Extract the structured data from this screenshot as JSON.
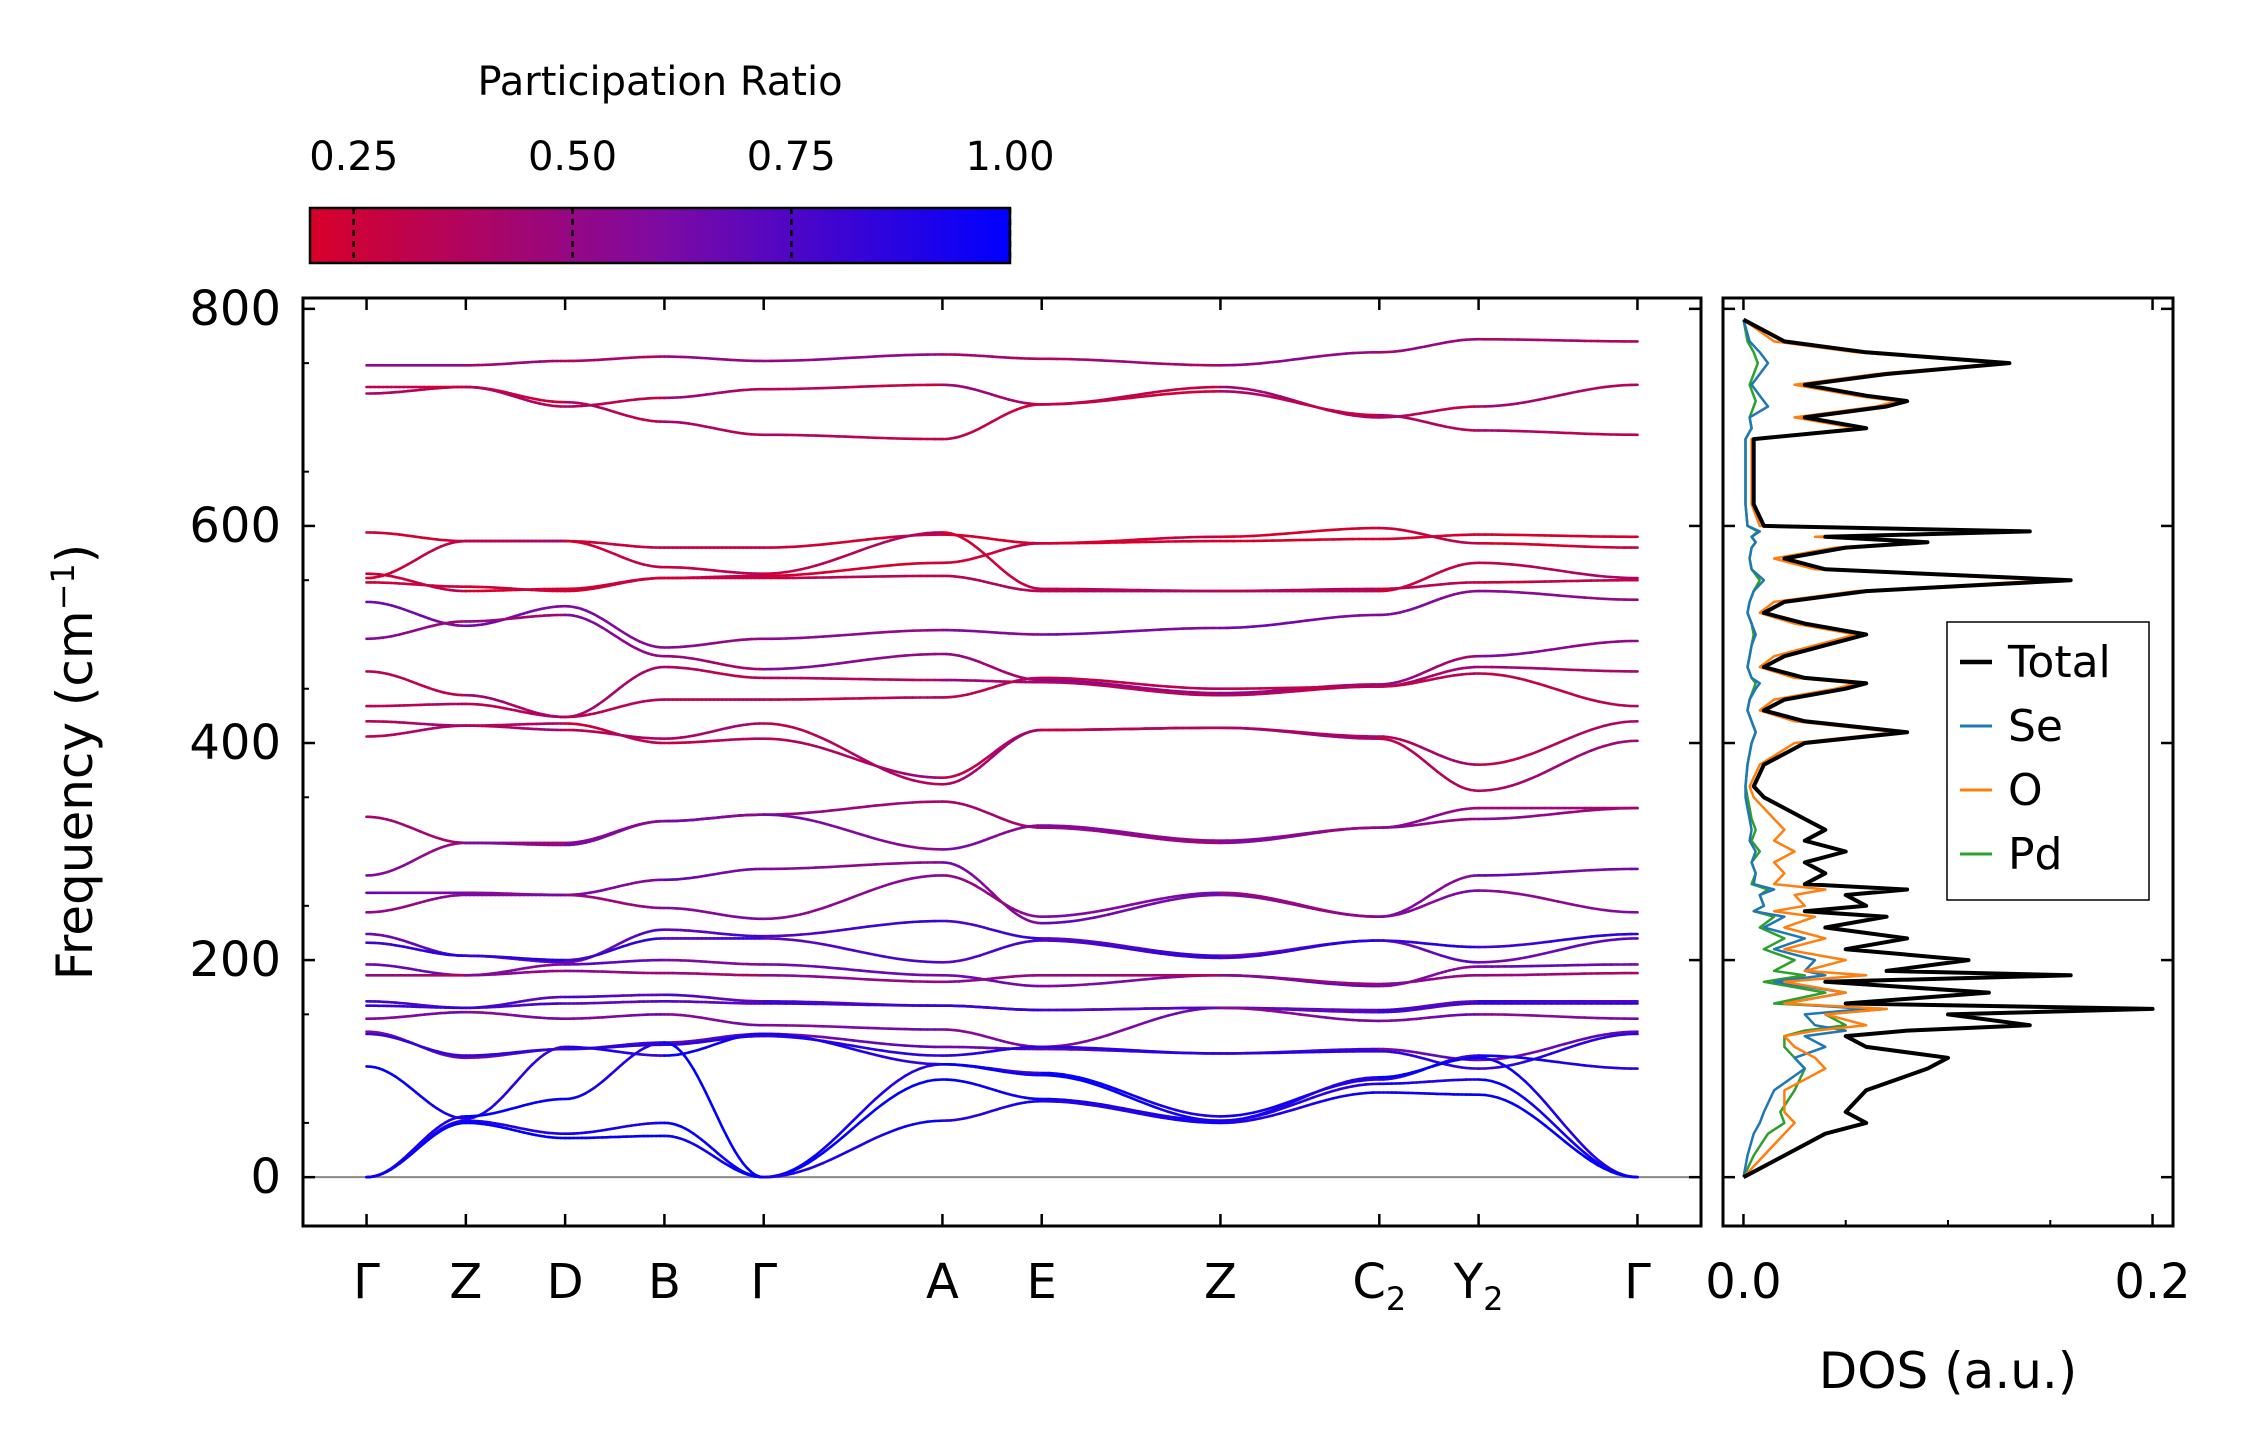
{
  "chart_data": [
    {
      "type": "line",
      "subtype": "phonon-band-structure",
      "ylabel_main": "Frequency (cm",
      "ylabel_sup": "−1",
      "ylabel_close": ")",
      "ylim": [
        -45,
        810
      ],
      "yticks": [
        0,
        200,
        400,
        600,
        800
      ],
      "kpoints": [
        {
          "label": "Γ",
          "sub": "",
          "x": 0
        },
        {
          "label": "Z",
          "sub": "",
          "x": 0.5
        },
        {
          "label": "D",
          "sub": "",
          "x": 1.0
        },
        {
          "label": "B",
          "sub": "",
          "x": 1.5
        },
        {
          "label": "Γ",
          "sub": "",
          "x": 2.0
        },
        {
          "label": "A",
          "sub": "",
          "x": 2.9
        },
        {
          "label": "E",
          "sub": "",
          "x": 3.4
        },
        {
          "label": "Z",
          "sub": "",
          "x": 4.3
        },
        {
          "label": "C",
          "sub": "2",
          "x": 5.1
        },
        {
          "label": "Y",
          "sub": "2",
          "x": 5.6
        },
        {
          "label": "Γ",
          "sub": "",
          "x": 6.4
        }
      ],
      "xlim": [
        -0.32,
        6.72
      ],
      "segment_breaks": [
        2.0,
        2.9,
        5.6
      ],
      "zero_line": 0,
      "colorbar": {
        "title": "Participation Ratio",
        "range": [
          0.2,
          1.0
        ],
        "ticks": [
          "0.25",
          "0.50",
          "0.75",
          "1.00"
        ],
        "tick_values": [
          0.25,
          0.5,
          0.75,
          1.0
        ],
        "color_low": "#d8002a",
        "color_mid": "#7e0aa2",
        "color_high": "#0000ff"
      },
      "bands": [
        {
          "y": [
            748,
            748,
            752,
            756,
            752,
            758,
            754,
            748,
            760,
            772,
            770
          ],
          "pr": 0.42
        },
        {
          "y": [
            722,
            728,
            710,
            718,
            726,
            730,
            712,
            728,
            700,
            710,
            730
          ],
          "pr": 0.36
        },
        {
          "y": [
            728,
            728,
            714,
            696,
            684,
            680,
            712,
            724,
            702,
            688,
            684
          ],
          "pr": 0.34
        },
        {
          "y": [
            594,
            586,
            586,
            580,
            580,
            592,
            584,
            586,
            588,
            592,
            590
          ],
          "pr": 0.24
        },
        {
          "y": [
            556,
            540,
            542,
            552,
            554,
            566,
            584,
            590,
            598,
            584,
            580
          ],
          "pr": 0.25
        },
        {
          "y": [
            552,
            586,
            586,
            562,
            556,
            594,
            542,
            540,
            540,
            566,
            552
          ],
          "pr": 0.3
        },
        {
          "y": [
            548,
            544,
            540,
            552,
            552,
            554,
            540,
            540,
            542,
            548,
            550
          ],
          "pr": 0.28
        },
        {
          "y": [
            530,
            508,
            526,
            488,
            496,
            504,
            500,
            506,
            518,
            540,
            532
          ],
          "pr": 0.55
        },
        {
          "y": [
            496,
            512,
            518,
            480,
            468,
            482,
            458,
            446,
            454,
            480,
            494
          ],
          "pr": 0.5
        },
        {
          "y": [
            466,
            444,
            424,
            470,
            460,
            458,
            456,
            444,
            452,
            470,
            466
          ],
          "pr": 0.42
        },
        {
          "y": [
            434,
            436,
            424,
            440,
            440,
            442,
            460,
            450,
            452,
            464,
            434
          ],
          "pr": 0.4
        },
        {
          "y": [
            420,
            416,
            418,
            400,
            404,
            368,
            412,
            414,
            406,
            380,
            420
          ],
          "pr": 0.34
        },
        {
          "y": [
            406,
            416,
            412,
            404,
            418,
            362,
            412,
            414,
            404,
            356,
            402
          ],
          "pr": 0.36
        },
        {
          "y": [
            332,
            308,
            308,
            328,
            334,
            346,
            322,
            308,
            322,
            340,
            340
          ],
          "pr": 0.46
        },
        {
          "y": [
            278,
            308,
            306,
            328,
            334,
            302,
            324,
            310,
            322,
            330,
            340
          ],
          "pr": 0.52
        },
        {
          "y": [
            262,
            262,
            260,
            274,
            284,
            290,
            234,
            260,
            240,
            278,
            284
          ],
          "pr": 0.62
        },
        {
          "y": [
            244,
            260,
            260,
            248,
            238,
            278,
            240,
            262,
            240,
            264,
            244
          ],
          "pr": 0.58
        },
        {
          "y": [
            224,
            204,
            198,
            228,
            222,
            236,
            220,
            204,
            218,
            198,
            220
          ],
          "pr": 0.74
        },
        {
          "y": [
            216,
            204,
            200,
            220,
            220,
            198,
            218,
            202,
            218,
            212,
            224
          ],
          "pr": 0.78
        },
        {
          "y": [
            196,
            186,
            196,
            200,
            196,
            186,
            176,
            186,
            176,
            194,
            196
          ],
          "pr": 0.6
        },
        {
          "y": [
            186,
            186,
            190,
            188,
            186,
            180,
            186,
            186,
            178,
            186,
            188
          ],
          "pr": 0.48
        },
        {
          "y": [
            162,
            156,
            166,
            168,
            162,
            158,
            154,
            156,
            154,
            162,
            162
          ],
          "pr": 0.8
        },
        {
          "y": [
            158,
            156,
            160,
            162,
            160,
            158,
            154,
            156,
            152,
            160,
            160
          ],
          "pr": 0.8
        },
        {
          "y": [
            146,
            152,
            146,
            150,
            140,
            136,
            120,
            156,
            144,
            150,
            146
          ],
          "pr": 0.62
        },
        {
          "y": [
            134,
            110,
            118,
            124,
            132,
            120,
            118,
            114,
            118,
            108,
            134
          ],
          "pr": 0.7
        },
        {
          "y": [
            132,
            112,
            118,
            122,
            130,
            112,
            120,
            114,
            116,
            100,
            132
          ],
          "pr": 0.78
        },
        {
          "y": [
            102,
            54,
            120,
            112,
            132,
            104,
            96,
            56,
            90,
            112,
            100
          ],
          "pr": 0.88
        },
        {
          "y": [
            0,
            56,
            72,
            124,
            0,
            104,
            94,
            52,
            92,
            110,
            0
          ],
          "pr": 0.98
        },
        {
          "y": [
            0,
            52,
            40,
            50,
            0,
            90,
            72,
            52,
            86,
            90,
            0
          ],
          "pr": 0.98
        },
        {
          "y": [
            0,
            50,
            36,
            38,
            0,
            52,
            70,
            50,
            78,
            76,
            0
          ],
          "pr": 0.98
        }
      ]
    },
    {
      "type": "line",
      "subtype": "density-of-states",
      "xlabel": "DOS (a.u.)",
      "xlim": [
        -0.01,
        0.21
      ],
      "xticks": [
        "0.0",
        "0.2"
      ],
      "xtick_values": [
        0,
        0.2
      ],
      "legend_position": "center-right",
      "freq_grid": [
        0,
        20,
        40,
        50,
        60,
        80,
        100,
        110,
        120,
        130,
        135,
        140,
        150,
        155,
        160,
        170,
        180,
        186,
        190,
        200,
        210,
        220,
        230,
        240,
        245,
        250,
        260,
        265,
        270,
        280,
        290,
        300,
        310,
        320,
        330,
        340,
        350,
        360,
        380,
        400,
        410,
        420,
        430,
        440,
        450,
        455,
        460,
        470,
        480,
        490,
        500,
        510,
        520,
        530,
        540,
        550,
        560,
        570,
        580,
        585,
        590,
        595,
        600,
        620,
        640,
        660,
        680,
        690,
        700,
        710,
        715,
        720,
        730,
        740,
        750,
        760,
        770,
        790
      ],
      "series": [
        {
          "name": "Total",
          "color": "#000000",
          "width": 4,
          "values": [
            0,
            0.02,
            0.04,
            0.06,
            0.05,
            0.06,
            0.09,
            0.1,
            0.06,
            0.05,
            0.08,
            0.14,
            0.1,
            0.2,
            0.05,
            0.12,
            0.04,
            0.16,
            0.07,
            0.11,
            0.05,
            0.08,
            0.04,
            0.07,
            0.03,
            0.06,
            0.05,
            0.08,
            0.03,
            0.04,
            0.03,
            0.05,
            0.03,
            0.04,
            0.03,
            0.02,
            0.01,
            0.005,
            0.01,
            0.03,
            0.08,
            0.03,
            0.01,
            0.02,
            0.05,
            0.06,
            0.03,
            0.01,
            0.02,
            0.04,
            0.06,
            0.03,
            0.01,
            0.02,
            0.06,
            0.16,
            0.04,
            0.02,
            0.05,
            0.09,
            0.04,
            0.14,
            0.01,
            0.005,
            0.005,
            0.005,
            0.005,
            0.06,
            0.03,
            0.07,
            0.08,
            0.06,
            0.03,
            0.07,
            0.13,
            0.06,
            0.02,
            0
          ]
        },
        {
          "name": "Se",
          "color": "#1f77b4",
          "width": 2.5,
          "values": [
            0,
            0.002,
            0.005,
            0.008,
            0.01,
            0.015,
            0.03,
            0.025,
            0.04,
            0.03,
            0.05,
            0.035,
            0.03,
            0.06,
            0.02,
            0.05,
            0.015,
            0.04,
            0.03,
            0.035,
            0.015,
            0.03,
            0.01,
            0.02,
            0.005,
            0.01,
            0.008,
            0.015,
            0.005,
            0.006,
            0.004,
            0.006,
            0.003,
            0.004,
            0.003,
            0.002,
            0.001,
            0.001,
            0.002,
            0.004,
            0.006,
            0.004,
            0.002,
            0.003,
            0.006,
            0.008,
            0.004,
            0.002,
            0.003,
            0.004,
            0.006,
            0.004,
            0.002,
            0.003,
            0.005,
            0.01,
            0.004,
            0.003,
            0.004,
            0.006,
            0.004,
            0.008,
            0.002,
            0.001,
            0.001,
            0.001,
            0.001,
            0.004,
            0.003,
            0.012,
            0.01,
            0.008,
            0.004,
            0.008,
            0.012,
            0.008,
            0.003,
            0
          ]
        },
        {
          "name": "O",
          "color": "#ff7f0e",
          "width": 2.5,
          "values": [
            0,
            0.01,
            0.02,
            0.025,
            0.02,
            0.02,
            0.04,
            0.035,
            0.025,
            0.02,
            0.035,
            0.06,
            0.04,
            0.07,
            0.02,
            0.05,
            0.02,
            0.06,
            0.03,
            0.05,
            0.02,
            0.04,
            0.02,
            0.035,
            0.015,
            0.03,
            0.025,
            0.04,
            0.015,
            0.02,
            0.015,
            0.025,
            0.015,
            0.02,
            0.015,
            0.01,
            0.005,
            0.003,
            0.008,
            0.025,
            0.075,
            0.025,
            0.008,
            0.015,
            0.045,
            0.055,
            0.025,
            0.008,
            0.015,
            0.035,
            0.055,
            0.025,
            0.008,
            0.015,
            0.055,
            0.15,
            0.035,
            0.015,
            0.045,
            0.085,
            0.035,
            0.13,
            0.008,
            0.004,
            0.004,
            0.004,
            0.004,
            0.055,
            0.025,
            0.065,
            0.075,
            0.055,
            0.025,
            0.065,
            0.125,
            0.055,
            0.015,
            0
          ]
        },
        {
          "name": "Pd",
          "color": "#2ca02c",
          "width": 2.5,
          "values": [
            0,
            0.005,
            0.012,
            0.02,
            0.018,
            0.025,
            0.03,
            0.025,
            0.02,
            0.02,
            0.03,
            0.05,
            0.04,
            0.07,
            0.015,
            0.04,
            0.01,
            0.03,
            0.015,
            0.025,
            0.01,
            0.02,
            0.008,
            0.015,
            0.005,
            0.01,
            0.008,
            0.012,
            0.004,
            0.006,
            0.004,
            0.008,
            0.004,
            0.006,
            0.004,
            0.003,
            0.002,
            0.001,
            0.002,
            0.004,
            0.006,
            0.004,
            0.002,
            0.003,
            0.005,
            0.006,
            0.004,
            0.002,
            0.003,
            0.004,
            0.005,
            0.004,
            0.002,
            0.003,
            0.005,
            0.008,
            0.004,
            0.003,
            0.004,
            0.006,
            0.004,
            0.007,
            0.002,
            0.001,
            0.001,
            0.001,
            0.001,
            0.004,
            0.003,
            0.005,
            0.006,
            0.005,
            0.003,
            0.005,
            0.007,
            0.005,
            0.002,
            0
          ]
        }
      ]
    }
  ]
}
